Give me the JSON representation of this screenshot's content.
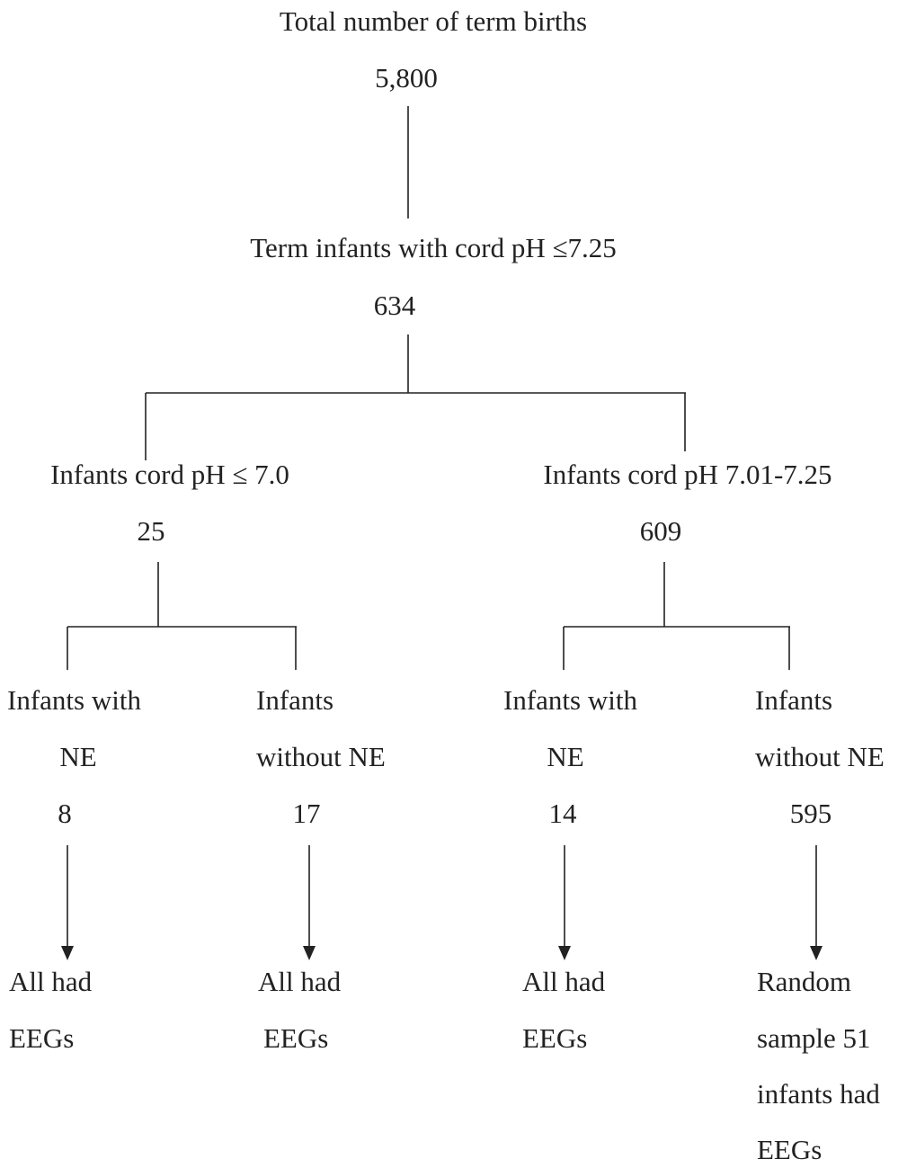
{
  "nodes": [
    {
      "label": [
        "Total number of term births"
      ],
      "count": "5,800"
    },
    {
      "label": [
        "Term infants with cord pH ≤7.25"
      ],
      "count": "634"
    },
    {
      "label": [
        "Infants cord pH ≤ 7.0"
      ],
      "count": "25"
    },
    {
      "label": [
        "Infants cord pH 7.01-7.25"
      ],
      "count": "609"
    },
    {
      "label": [
        "Infants with",
        "NE"
      ],
      "count": "8",
      "outcome": [
        "All had",
        "EEGs"
      ]
    },
    {
      "label": [
        "Infants",
        "without NE"
      ],
      "count": "17",
      "outcome": [
        "All had",
        "EEGs"
      ]
    },
    {
      "label": [
        "Infants with",
        "NE"
      ],
      "count": "14",
      "outcome": [
        "All had",
        "EEGs"
      ]
    },
    {
      "label": [
        "Infants",
        "without NE"
      ],
      "count": "595",
      "outcome": [
        "Random",
        "sample 51",
        "infants had",
        "EEGs"
      ]
    }
  ]
}
